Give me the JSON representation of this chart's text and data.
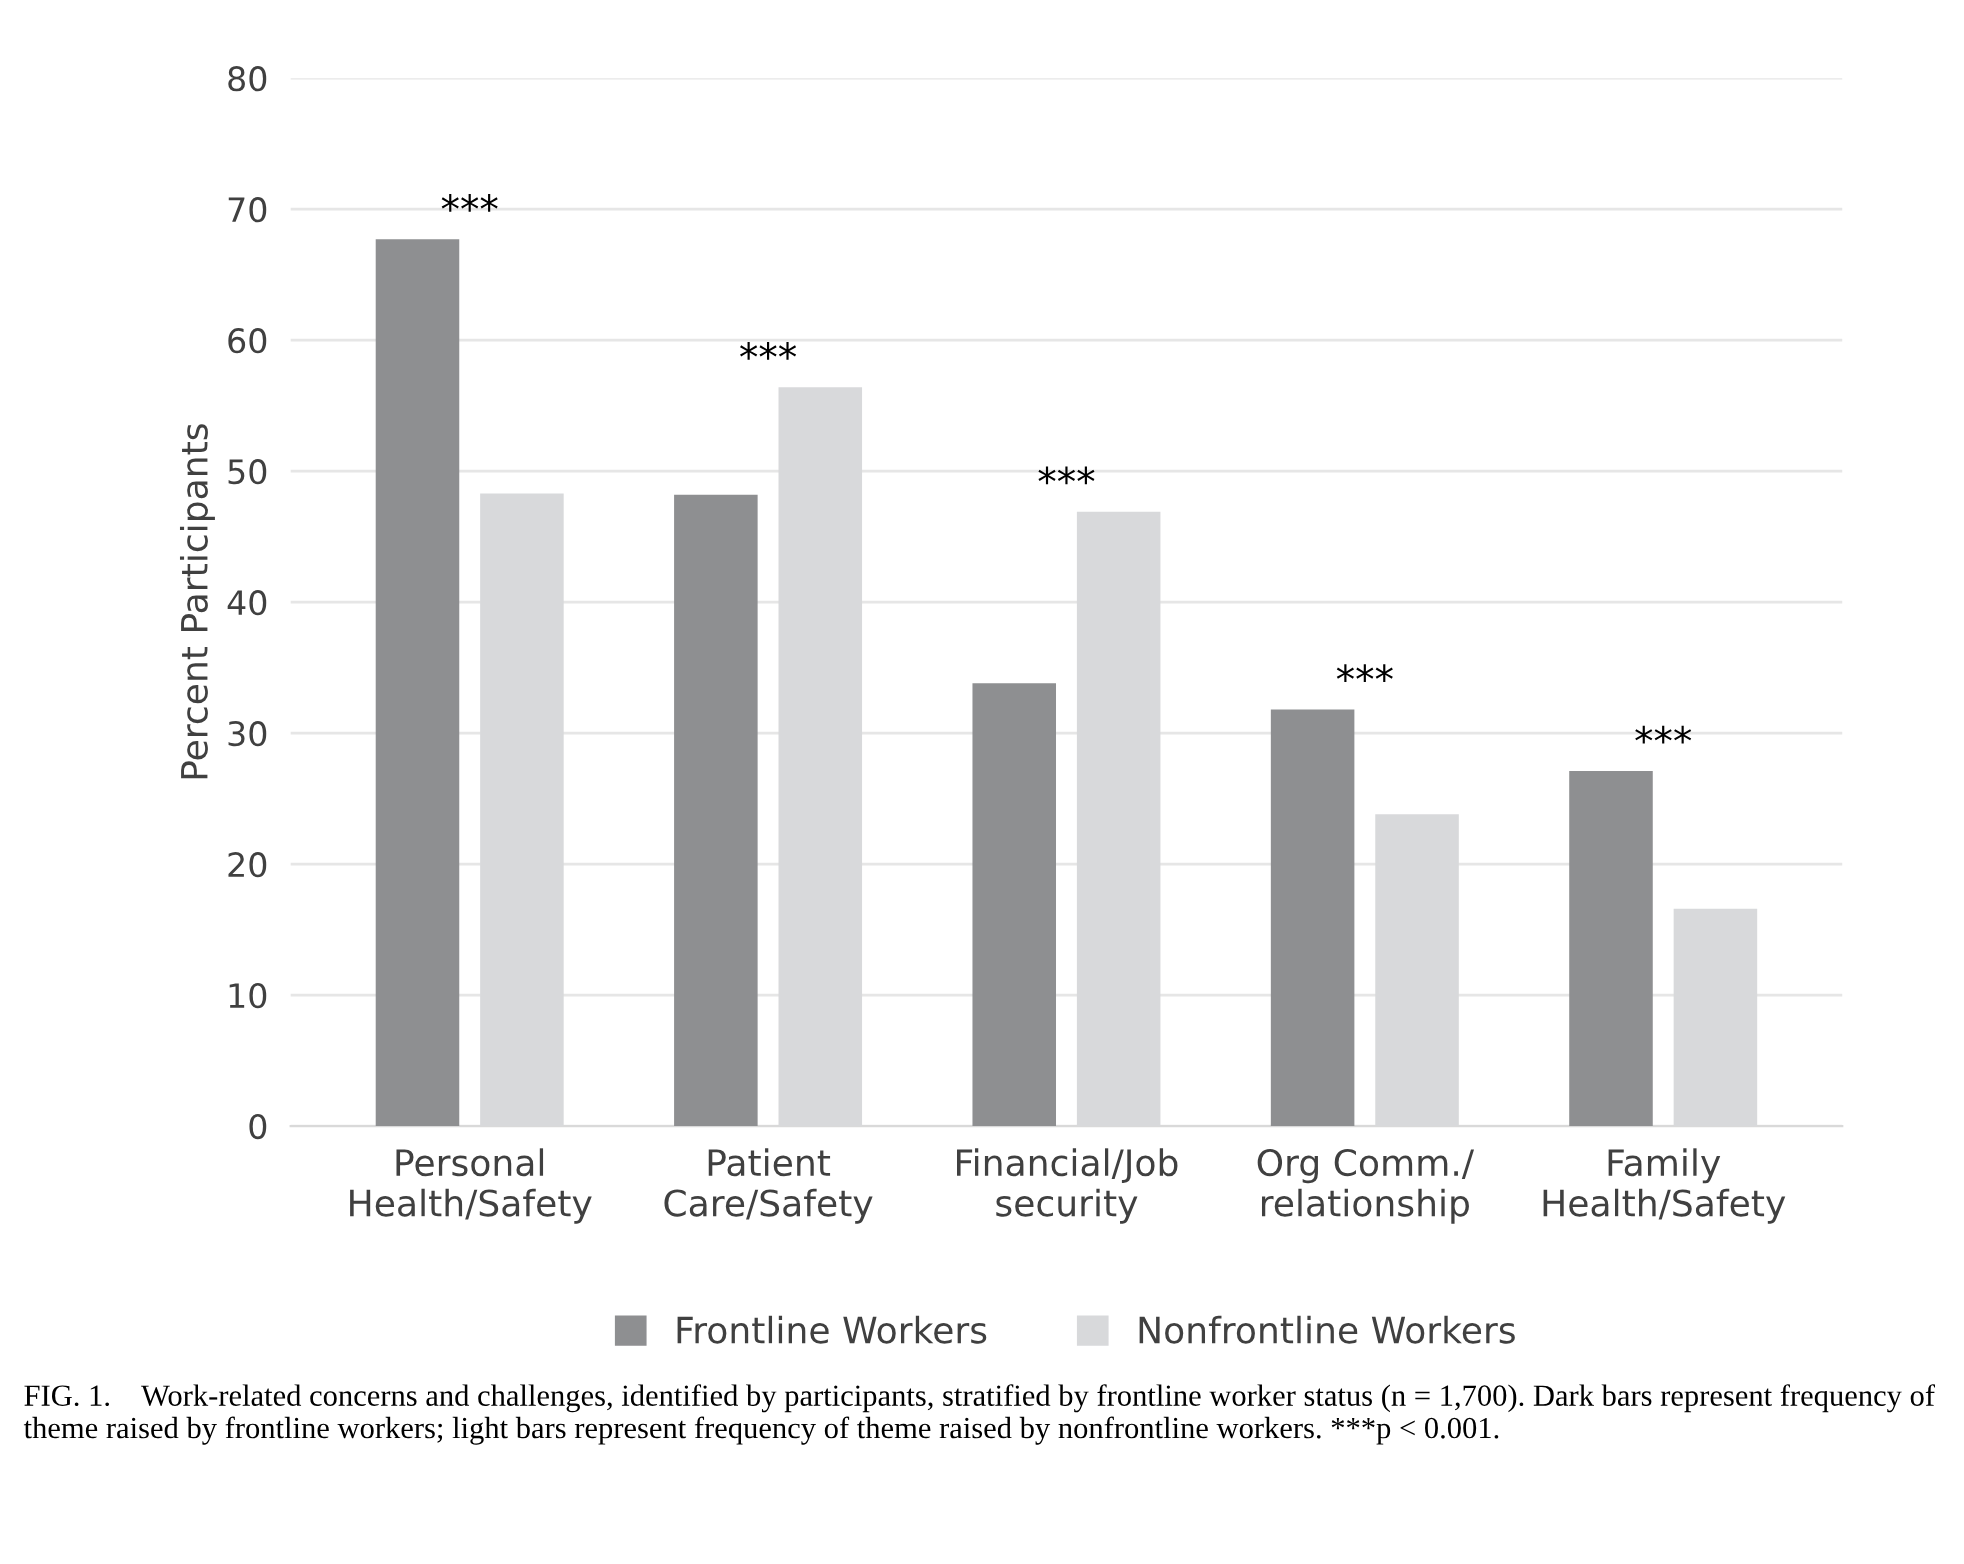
{
  "chart_data": {
    "type": "bar",
    "ylabel": "Percent Participants",
    "categories": [
      "Personal\nHealth/Safety",
      "Patient\nCare/Safety",
      "Financial/Job\nsecurity",
      "Org Comm./\nrelationship",
      "Family\nHealth/Safety"
    ],
    "series": [
      {
        "name": "Frontline Workers",
        "color": "#8e8f91",
        "values": [
          67.7,
          48.2,
          33.8,
          31.8,
          27.1
        ]
      },
      {
        "name": "Nonfrontline Workers",
        "color": "#d8d9db",
        "values": [
          48.3,
          56.4,
          46.9,
          23.8,
          16.6
        ]
      }
    ],
    "ylim": [
      0,
      80
    ],
    "yticks": [
      0,
      10,
      20,
      30,
      40,
      50,
      60,
      70,
      80
    ],
    "grid": "y",
    "legend": "bottom",
    "annotations": [
      "***",
      "***",
      "***",
      "***",
      "***",
      "FIG. 1.    Work-related concerns and challenges, identified by participants, stratified by frontline worker status (n = 1,700). Dark bars represent frequency of theme raised by frontline workers; light bars represent frequency of theme raised by nonfrontline workers. ***p < 0.001."
    ]
  }
}
